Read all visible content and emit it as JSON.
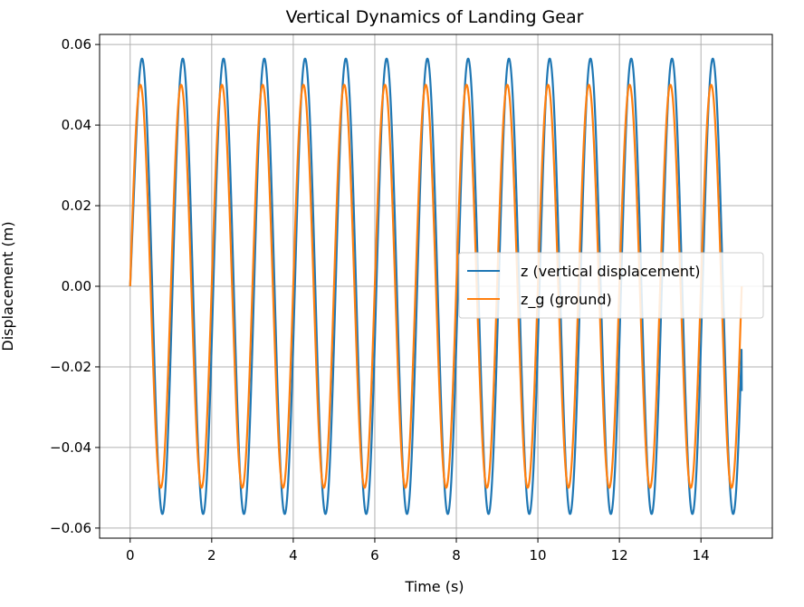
{
  "chart_data": {
    "type": "line",
    "title": "Vertical Dynamics of Landing Gear",
    "xlabel": "Time (s)",
    "ylabel": "Displacement (m)",
    "xlim": [
      -0.75,
      15.75
    ],
    "ylim": [
      -0.0625,
      0.0625
    ],
    "x_ticks": [
      0,
      2,
      4,
      6,
      8,
      10,
      12,
      14
    ],
    "x_tick_labels": [
      "0",
      "2",
      "4",
      "6",
      "8",
      "10",
      "12",
      "14"
    ],
    "y_ticks": [
      -0.06,
      -0.04,
      -0.02,
      0.0,
      0.02,
      0.04,
      0.06
    ],
    "y_tick_labels": [
      "−0.06",
      "−0.04",
      "−0.02",
      "0.00",
      "0.02",
      "0.04",
      "0.06"
    ],
    "grid": true,
    "legend_position": "center-right",
    "x_range": [
      0,
      15
    ],
    "series": [
      {
        "name": "z (vertical displacement)",
        "color": "#1f77b4",
        "model": "sinusoid",
        "amplitude": 0.0565,
        "frequency_hz": 1.0,
        "phase_lag_cycles": 0.04,
        "first_peak": [
          0.3,
          0.053
        ],
        "first_trough": [
          0.8,
          -0.057
        ],
        "end_point": [
          15.0,
          -0.026
        ]
      },
      {
        "name": "z_g (ground)",
        "color": "#ff7f0e",
        "model": "sinusoid",
        "amplitude": 0.05,
        "frequency_hz": 1.0,
        "phase_lag_cycles": 0.0,
        "end_point": [
          15.0,
          0.0
        ]
      }
    ]
  }
}
